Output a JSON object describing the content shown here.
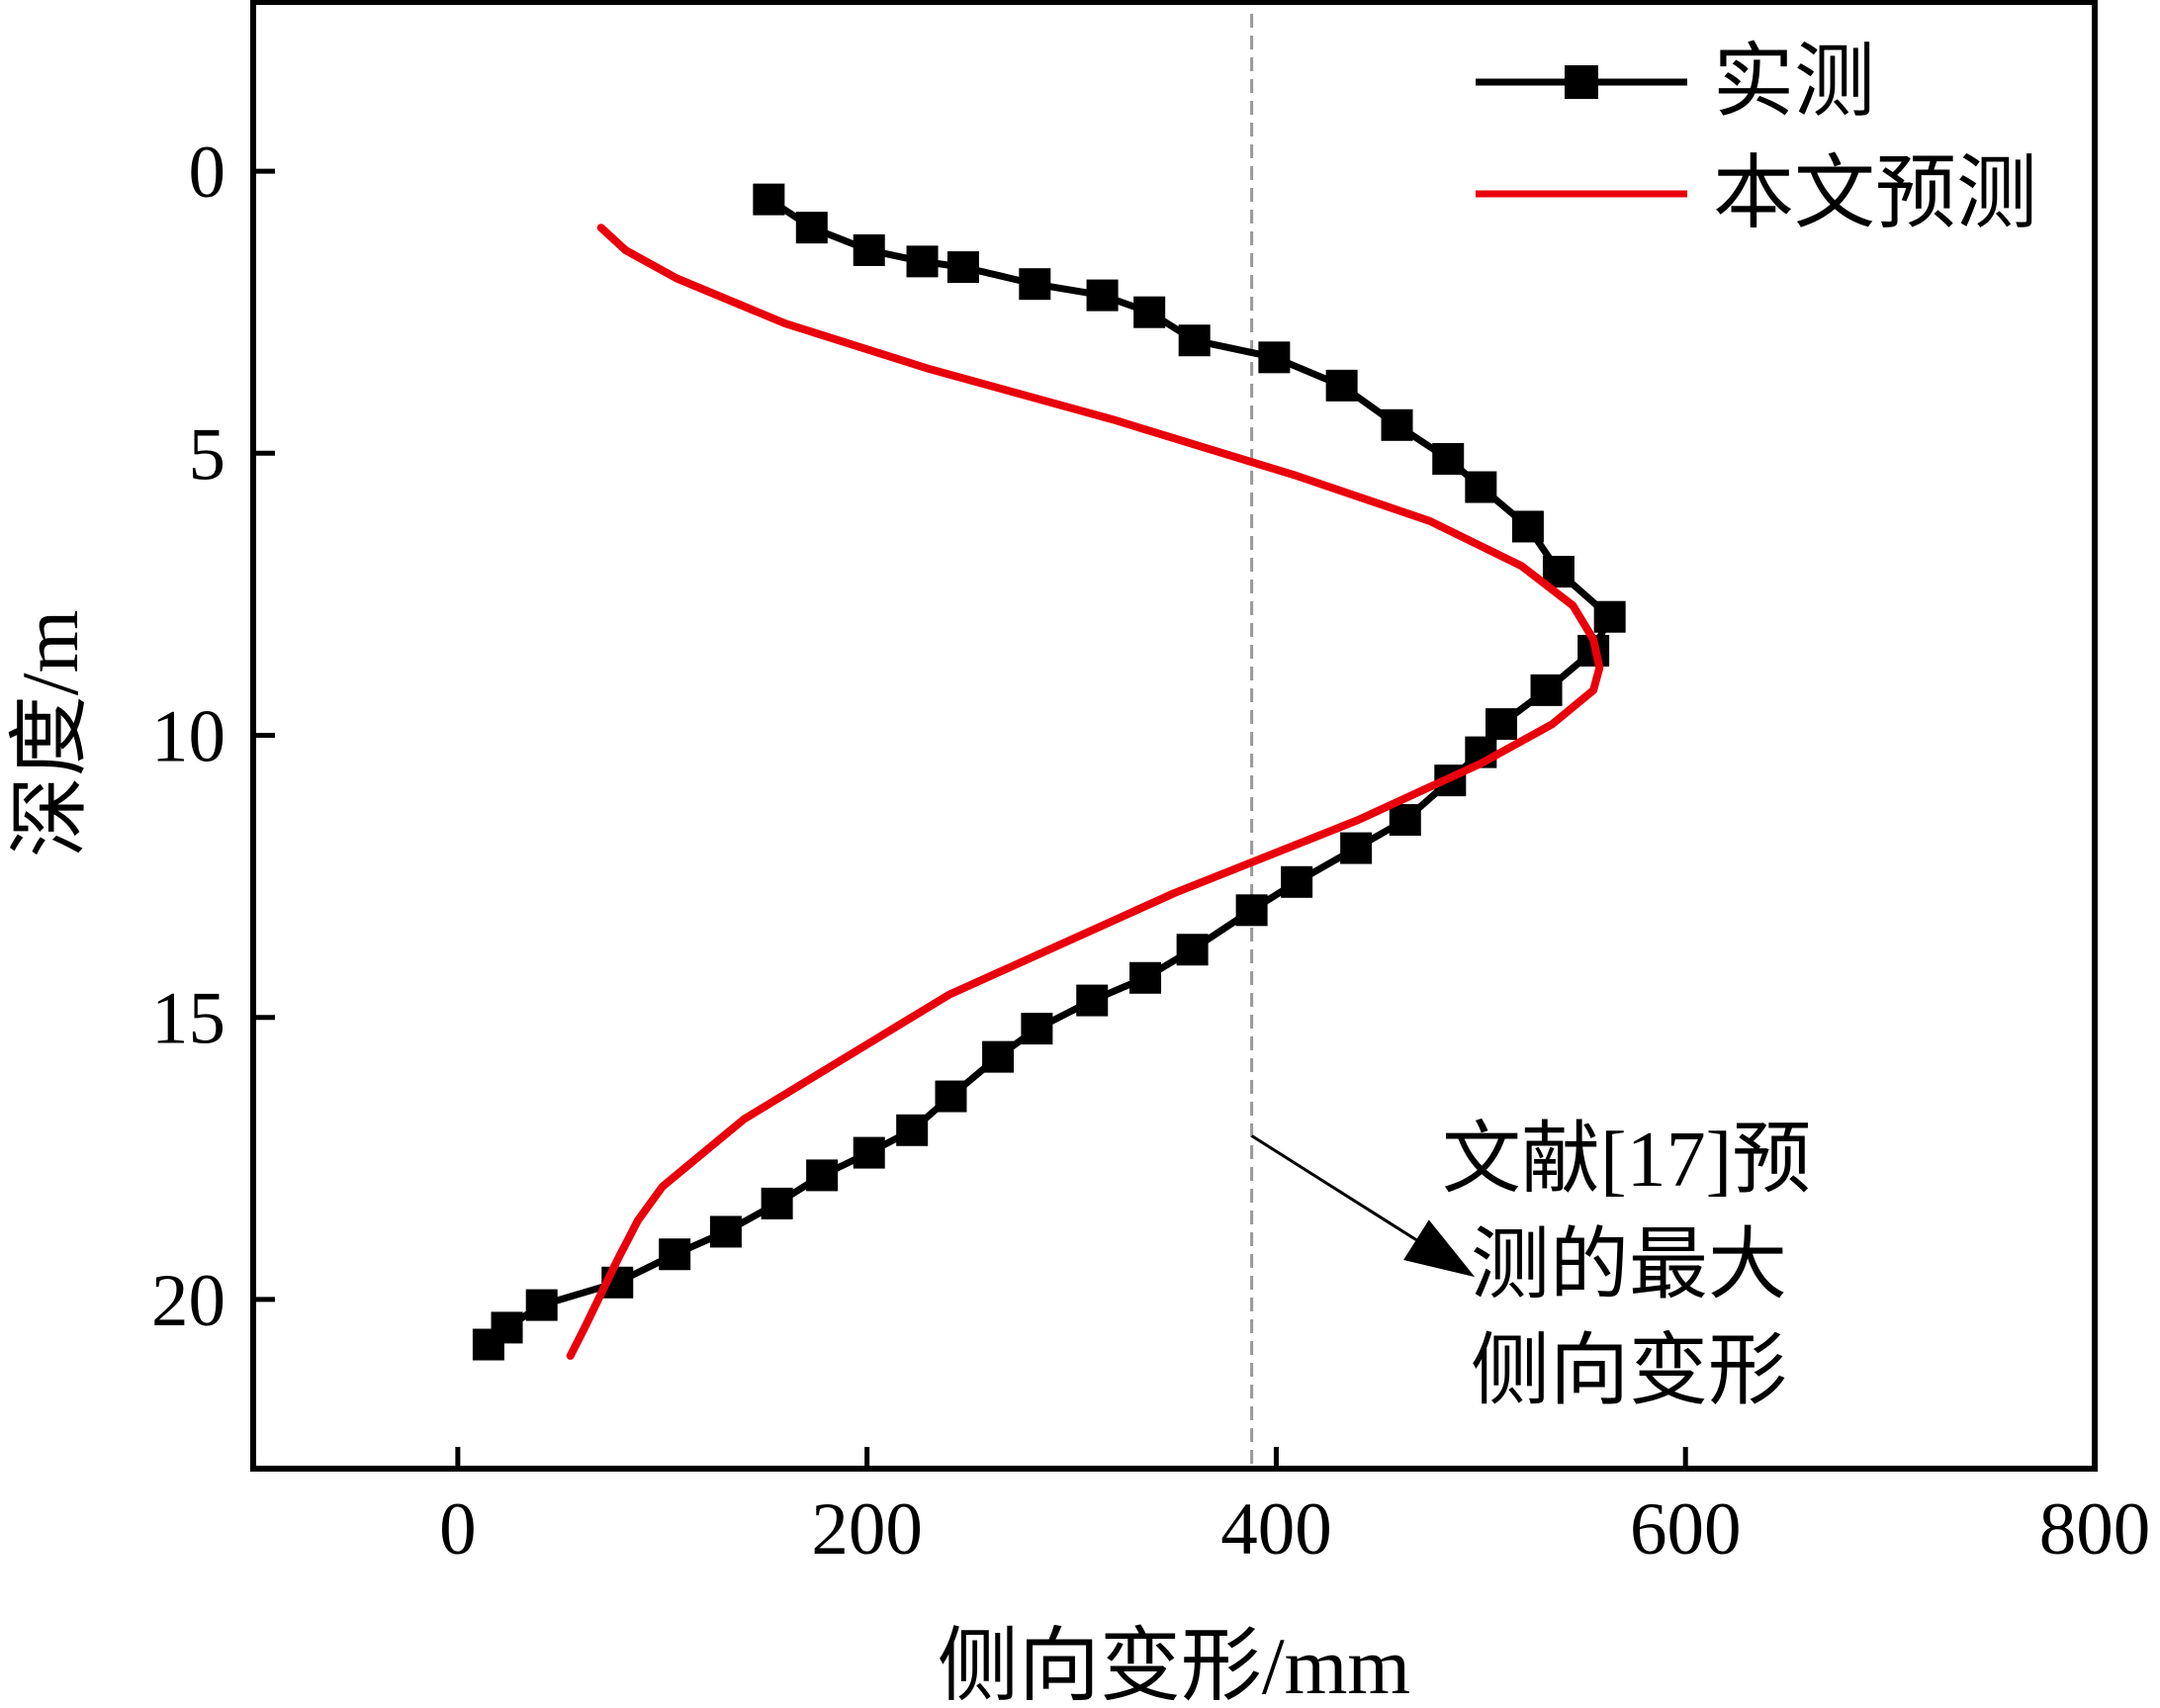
{
  "chart_data": {
    "type": "line",
    "orientation": "depth-profile (x = lateral deformation, y = depth, y axis inverted)",
    "xlabel": "侧向变形/mm",
    "ylabel": "深度/m",
    "xlim": [
      -100,
      800
    ],
    "ylim": [
      23,
      -3
    ],
    "y_inverted": true,
    "x_ticks": [
      "0",
      "200",
      "400",
      "600",
      "800"
    ],
    "y_ticks": [
      "0",
      "5",
      "10",
      "15",
      "20"
    ],
    "grid": false,
    "legend_position": "top-right",
    "colors": {
      "measured": "#000000",
      "predicted": "#e8000b",
      "reference_line": "#999999"
    },
    "series": [
      {
        "name": "实测",
        "marker": "square",
        "color": "#000000",
        "x": [
          152,
          173,
          201,
          227,
          247,
          282,
          315,
          338,
          360,
          399,
          432,
          459,
          484,
          500,
          523,
          538,
          563,
          555,
          532,
          510,
          500,
          485,
          463,
          439,
          410,
          388,
          359,
          336,
          310,
          283,
          264,
          241,
          222,
          201,
          178,
          156,
          131,
          106,
          78,
          41,
          24,
          15
        ],
        "y": [
          0.5,
          1.0,
          1.4,
          1.6,
          1.7,
          2.0,
          2.2,
          2.5,
          3.0,
          3.3,
          3.8,
          4.5,
          5.1,
          5.6,
          6.3,
          7.1,
          7.9,
          8.5,
          9.2,
          9.8,
          10.3,
          10.8,
          11.5,
          12.0,
          12.6,
          13.1,
          13.8,
          14.3,
          14.7,
          15.2,
          15.7,
          16.4,
          17.0,
          17.4,
          17.8,
          18.3,
          18.8,
          19.2,
          19.7,
          20.1,
          20.5,
          20.8
        ]
      },
      {
        "name": "本文预测",
        "color": "#e8000b",
        "x": [
          70,
          82,
          107,
          160,
          230,
          320,
          410,
          475,
          520,
          545,
          555,
          558,
          555,
          535,
          500,
          440,
          350,
          240,
          140,
          100,
          88,
          78,
          70,
          62,
          55
        ],
        "y": [
          1.0,
          1.4,
          1.9,
          2.7,
          3.5,
          4.4,
          5.4,
          6.2,
          7.0,
          7.7,
          8.3,
          8.8,
          9.2,
          9.8,
          10.5,
          11.5,
          12.8,
          14.6,
          16.8,
          18.0,
          18.6,
          19.3,
          19.9,
          20.5,
          21.0
        ]
      }
    ],
    "reference_line": {
      "x": 388
    },
    "annotation": {
      "lines": [
        "文献[17]预",
        "测的最大",
        "侧向变形"
      ],
      "arrow_from": {
        "x": 388,
        "y": 17.1
      },
      "arrow_to": {
        "x": 497,
        "y": 19.6
      }
    }
  }
}
